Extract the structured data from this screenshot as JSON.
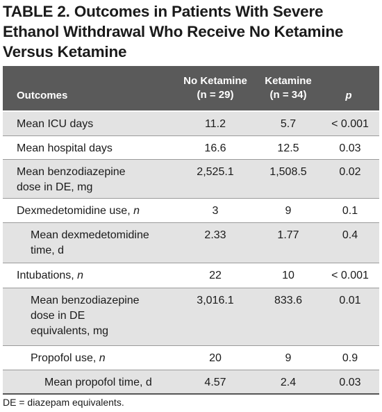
{
  "table": {
    "label": "TABLE 2.",
    "title": "Outcomes in Patients With Severe Ethanol Withdrawal Who Receive No Ketamine Versus Ketamine",
    "headers": {
      "outcomes": "Outcomes",
      "no_ketamine": "No Ketamine",
      "no_ketamine_n": "(n = 29)",
      "ketamine": "Ketamine",
      "ketamine_n": "(n = 34)",
      "p": "p"
    },
    "rows": [
      {
        "outcome": "Mean ICU days",
        "no_ketamine": "11.2",
        "ketamine": "5.7",
        "p": "< 0.001"
      },
      {
        "outcome": "Mean hospital days",
        "no_ketamine": "16.6",
        "ketamine": "12.5",
        "p": "0.03"
      },
      {
        "outcome_line1": "Mean benzodiazepine",
        "outcome_line2": "dose in DE, mg",
        "no_ketamine": "2,525.1",
        "ketamine": "1,508.5",
        "p": "0.02"
      },
      {
        "outcome": "Dexmedetomidine use, ",
        "outcome_italic": "n",
        "no_ketamine": "3",
        "ketamine": "9",
        "p": "0.1"
      },
      {
        "outcome_line1": "Mean dexmedetomidine",
        "outcome_line2": "time, d",
        "no_ketamine": "2.33",
        "ketamine": "1.77",
        "p": "0.4"
      },
      {
        "outcome": "Intubations, ",
        "outcome_italic": "n",
        "no_ketamine": "22",
        "ketamine": "10",
        "p": "< 0.001"
      },
      {
        "outcome_line1": "Mean benzodiazepine",
        "outcome_line2": "dose in DE",
        "outcome_line3": "equivalents, mg",
        "no_ketamine": "3,016.1",
        "ketamine": "833.6",
        "p": "0.01"
      },
      {
        "outcome": "Propofol use, ",
        "outcome_italic": "n",
        "no_ketamine": "20",
        "ketamine": "9",
        "p": "0.9"
      },
      {
        "outcome": "Mean propofol time, d",
        "no_ketamine": "4.57",
        "ketamine": "2.4",
        "p": "0.03"
      }
    ],
    "footnote": "DE = diazepam equivalents."
  }
}
